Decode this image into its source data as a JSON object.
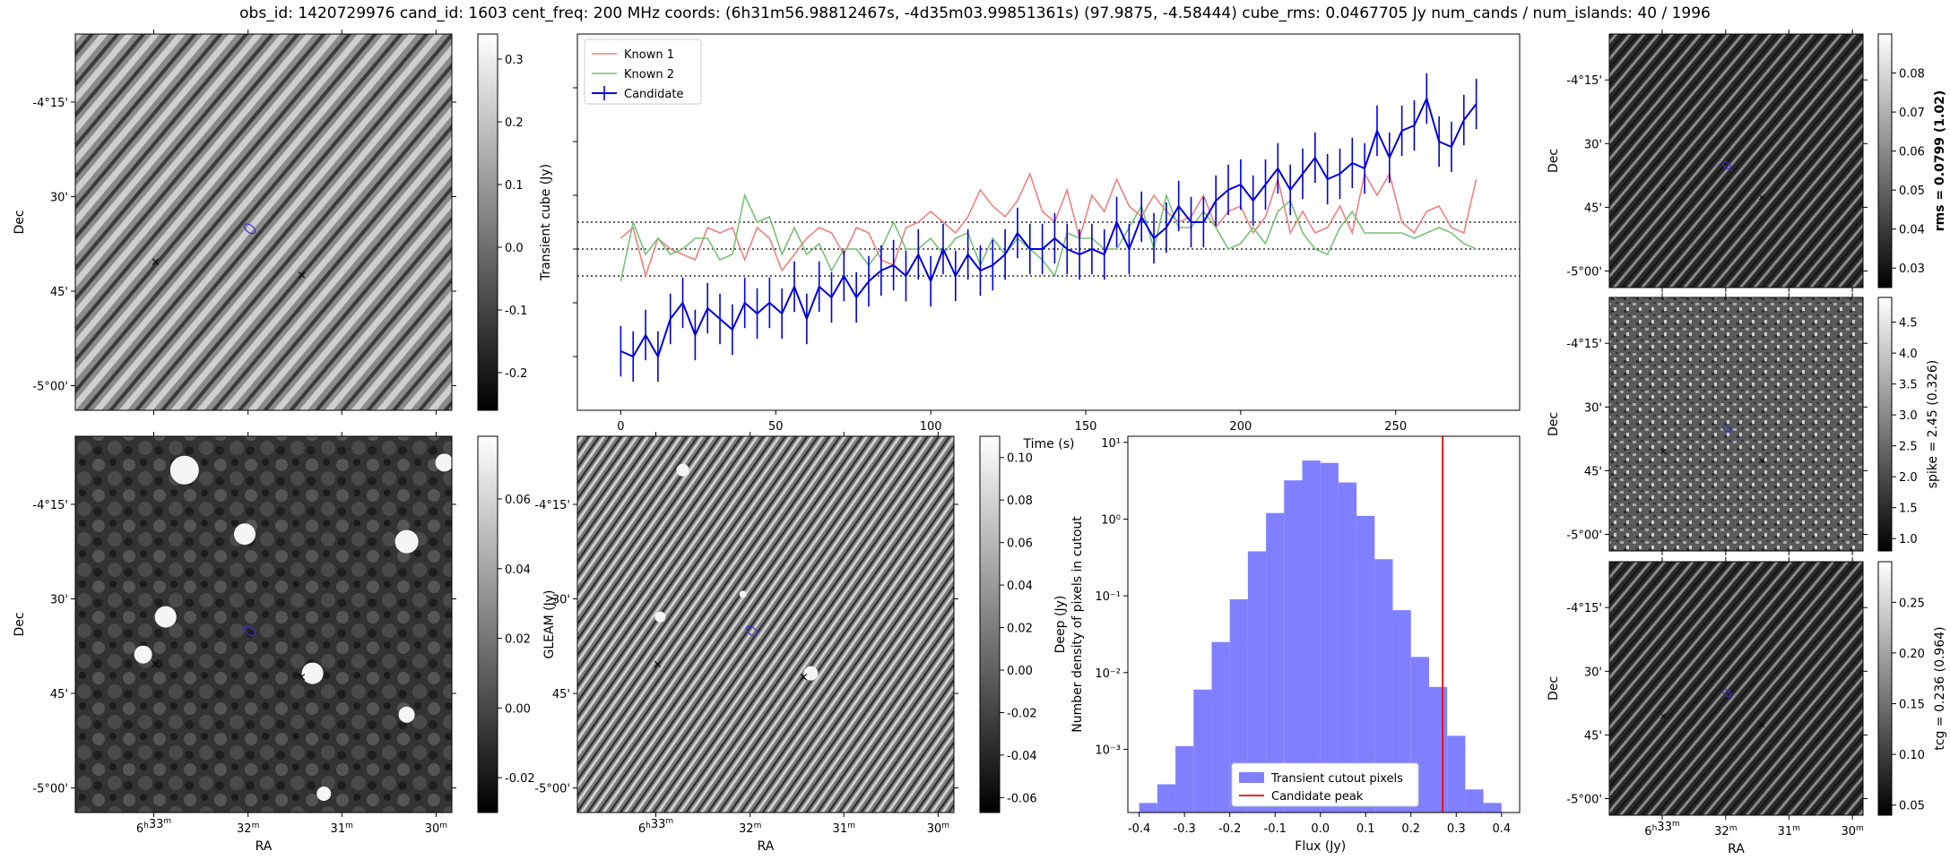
{
  "header": {
    "title": "obs_id: 1420729976 cand_id: 1603 cent_freq: 200 MHz coords: (6h31m56.98812467s, -4d35m03.99851361s) (97.9875, -4.58444) cube_rms: 0.0467705 Jy num_cands / num_islands: 40 / 1996"
  },
  "axes_text": {
    "ra_label": "RA",
    "dec_label": "Dec",
    "ra_ticks": [
      {
        "value": 6.55,
        "h": "6",
        "m": "33"
      },
      {
        "value": 6.5333,
        "h": "",
        "m": "32"
      },
      {
        "value": 6.5167,
        "h": "",
        "m": "31"
      },
      {
        "value": 6.5,
        "h": "",
        "m": "30"
      }
    ],
    "dec_ticks_full": [
      {
        "value": -4.25,
        "label": "-4°15'"
      },
      {
        "value": -4.5,
        "label": "30'"
      },
      {
        "value": -4.75,
        "label": "45'"
      },
      {
        "value": -5.0,
        "label": "-5°00'"
      }
    ]
  },
  "colors": {
    "known1": "#f08080",
    "known2": "#77c277",
    "candidate": "#0000dd",
    "hist_fill": "#8080ff",
    "peak_line": "#ff0000",
    "green_marker": "#00aa00",
    "red_marker": "#ff0000",
    "blue_ellipse": "#3333cc"
  },
  "panels": {
    "transient": {
      "cbar_label": "Transient cube (Jy)",
      "cbar_range": [
        -0.26,
        0.34
      ],
      "cbar_ticks": [
        "-0.2",
        "-0.1",
        "0.0",
        "0.1",
        "0.2",
        "0.3"
      ],
      "cbar_tick_values": [
        -0.2,
        -0.1,
        0.0,
        0.1,
        0.2,
        0.3
      ]
    },
    "gleam": {
      "cbar_label": "GLEAM (Jy)",
      "cbar_range": [
        -0.03,
        0.078
      ],
      "cbar_ticks": [
        "-0.02",
        "0.00",
        "0.02",
        "0.04",
        "0.06"
      ],
      "cbar_tick_values": [
        -0.02,
        0.0,
        0.02,
        0.04,
        0.06
      ]
    },
    "deep": {
      "cbar_label": "Deep (Jy)",
      "cbar_range": [
        -0.067,
        0.11
      ],
      "cbar_ticks": [
        "-0.06",
        "-0.04",
        "-0.02",
        "0.00",
        "0.02",
        "0.04",
        "0.06",
        "0.08",
        "0.10"
      ],
      "cbar_tick_values": [
        -0.06,
        -0.04,
        -0.02,
        0.0,
        0.02,
        0.04,
        0.06,
        0.08,
        0.1
      ]
    },
    "rms": {
      "cbar_label": "rms = 0.0799 (1.02)",
      "cbar_range": [
        0.025,
        0.09
      ],
      "cbar_ticks": [
        "0.03",
        "0.04",
        "0.05",
        "0.06",
        "0.07",
        "0.08"
      ],
      "cbar_tick_values": [
        0.03,
        0.04,
        0.05,
        0.06,
        0.07,
        0.08
      ]
    },
    "spike": {
      "cbar_label": "spike = 2.45 (0.326)",
      "cbar_range": [
        0.8,
        4.9
      ],
      "cbar_ticks": [
        "1.0",
        "1.5",
        "2.0",
        "2.5",
        "3.0",
        "3.5",
        "4.0",
        "4.5"
      ],
      "cbar_tick_values": [
        1.0,
        1.5,
        2.0,
        2.5,
        3.0,
        3.5,
        4.0,
        4.5
      ]
    },
    "tcg": {
      "cbar_label": "tcg = 0.236 (0.964)",
      "cbar_range": [
        0.04,
        0.29
      ],
      "cbar_ticks": [
        "0.05",
        "0.10",
        "0.15",
        "0.20",
        "0.25"
      ],
      "cbar_tick_values": [
        0.05,
        0.1,
        0.15,
        0.2,
        0.25
      ]
    }
  },
  "chart_data": [
    {
      "type": "line",
      "xlabel": "Time (s)",
      "xlim": [
        -14,
        290
      ],
      "ylim": [
        -0.3,
        0.4
      ],
      "x_ticks": [
        0,
        50,
        100,
        150,
        200,
        250
      ],
      "hlines": [
        0.05,
        0.0,
        -0.05
      ],
      "legend": "top-left",
      "x": [
        0,
        4,
        8,
        12,
        16,
        20,
        24,
        28,
        32,
        36,
        40,
        44,
        48,
        52,
        56,
        60,
        64,
        68,
        72,
        76,
        80,
        84,
        88,
        92,
        96,
        100,
        104,
        108,
        112,
        116,
        120,
        124,
        128,
        132,
        136,
        140,
        144,
        148,
        152,
        156,
        160,
        164,
        168,
        172,
        176,
        180,
        184,
        188,
        192,
        196,
        200,
        204,
        208,
        212,
        216,
        220,
        224,
        228,
        232,
        236,
        240,
        244,
        248,
        252,
        256,
        260,
        264,
        268,
        272,
        276
      ],
      "series": [
        {
          "name": "Known 1",
          "values": [
            0.02,
            0.04,
            -0.05,
            0.02,
            0.0,
            -0.01,
            -0.02,
            0.04,
            0.03,
            0.04,
            -0.02,
            0.04,
            0.02,
            -0.04,
            -0.01,
            0.02,
            0.04,
            0.03,
            -0.01,
            0.04,
            0.03,
            -0.02,
            -0.03,
            0.04,
            0.05,
            0.07,
            0.05,
            0.03,
            0.06,
            0.11,
            0.08,
            0.06,
            0.09,
            0.14,
            0.07,
            0.05,
            0.11,
            0.02,
            0.1,
            0.07,
            0.13,
            0.08,
            0.06,
            0.1,
            0.07,
            0.05,
            0.06,
            0.1,
            0.04,
            0.07,
            0.08,
            0.03,
            0.06,
            0.13,
            0.03,
            0.07,
            0.03,
            0.04,
            0.08,
            0.03,
            0.14,
            0.1,
            0.14,
            0.05,
            0.03,
            0.07,
            0.08,
            0.04,
            0.03,
            0.13
          ]
        },
        {
          "name": "Known 2",
          "values": [
            -0.06,
            0.05,
            -0.01,
            0.02,
            -0.01,
            0.0,
            0.02,
            0.02,
            -0.02,
            -0.01,
            0.1,
            0.05,
            0.06,
            -0.01,
            0.04,
            -0.01,
            0.01,
            -0.04,
            0.0,
            0.0,
            -0.03,
            0.0,
            0.05,
            0.0,
            0.0,
            0.02,
            -0.01,
            0.02,
            0.03,
            -0.03,
            0.02,
            -0.01,
            0.02,
            0.0,
            -0.02,
            -0.05,
            0.03,
            0.02,
            0.02,
            0.0,
            0.0,
            0.04,
            0.08,
            0.0,
            0.1,
            0.04,
            0.04,
            0.07,
            0.04,
            0.0,
            0.01,
            0.04,
            0.01,
            0.07,
            0.09,
            0.03,
            0.0,
            -0.01,
            0.04,
            0.07,
            0.03,
            0.03,
            0.03,
            0.03,
            0.02,
            0.03,
            0.04,
            0.03,
            0.01,
            0.0
          ]
        },
        {
          "name": "Candidate",
          "values": [
            -0.19,
            -0.2,
            -0.16,
            -0.2,
            -0.13,
            -0.1,
            -0.16,
            -0.11,
            -0.13,
            -0.15,
            -0.1,
            -0.12,
            -0.1,
            -0.12,
            -0.07,
            -0.13,
            -0.07,
            -0.09,
            -0.05,
            -0.09,
            -0.06,
            -0.04,
            -0.03,
            -0.05,
            -0.01,
            -0.06,
            0.0,
            -0.05,
            -0.01,
            -0.04,
            -0.03,
            -0.01,
            0.03,
            0.0,
            0.0,
            0.02,
            0.0,
            -0.01,
            0.0,
            -0.01,
            0.05,
            0.0,
            0.06,
            0.02,
            0.04,
            0.08,
            0.05,
            0.05,
            0.09,
            0.11,
            0.12,
            0.09,
            0.12,
            0.15,
            0.11,
            0.14,
            0.17,
            0.13,
            0.14,
            0.16,
            0.15,
            0.22,
            0.17,
            0.22,
            0.23,
            0.28,
            0.2,
            0.19,
            0.24,
            0.27
          ]
        }
      ],
      "error_bars": {
        "series": "Candidate",
        "half_width": 0.047
      }
    },
    {
      "type": "histogram",
      "xlabel": "Flux (Jy)",
      "ylabel": "Number density of pixels in cutout",
      "y_scale": "log",
      "xlim": [
        -0.425,
        0.44
      ],
      "ylim": [
        0.00015,
        12
      ],
      "x_ticks": [
        -0.4,
        -0.3,
        -0.2,
        -0.1,
        0.0,
        0.1,
        0.2,
        0.3,
        0.4
      ],
      "y_tick_labels": [
        {
          "value": 10,
          "label": "10¹"
        },
        {
          "value": 1,
          "label": "10⁰"
        },
        {
          "value": 0.1,
          "label": "10⁻¹"
        },
        {
          "value": 0.01,
          "label": "10⁻²"
        },
        {
          "value": 0.001,
          "label": "10⁻³"
        }
      ],
      "bins_start": -0.4,
      "bin_width": 0.04,
      "values": [
        0.0002,
        0.00035,
        0.0011,
        0.006,
        0.025,
        0.09,
        0.38,
        1.2,
        3.2,
        5.8,
        5.4,
        3.0,
        1.1,
        0.3,
        0.065,
        0.016,
        0.0065,
        0.0015,
        0.0003,
        0.0002
      ],
      "vline": 0.27,
      "legend": "bottom-center",
      "legend_entries": [
        "Transient cutout pixels",
        "Candidate peak"
      ]
    }
  ]
}
